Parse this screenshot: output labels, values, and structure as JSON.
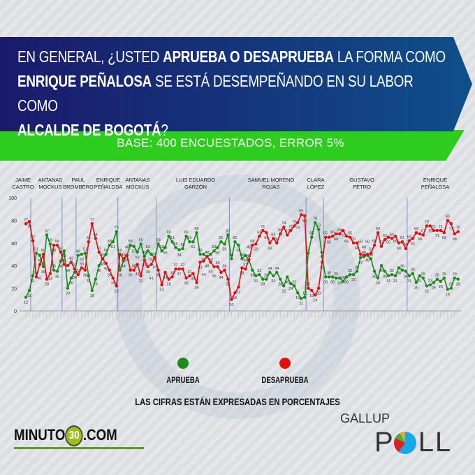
{
  "header": {
    "question_parts": [
      {
        "text": "EN GENERAL, ¿USTED ",
        "bold": false
      },
      {
        "text": "APRUEBA O DESAPRUEBA",
        "bold": true
      },
      {
        "text": " LA FORMA COMO ",
        "bold": false
      },
      {
        "text": "ENRIQUE PEÑALOSA",
        "bold": true
      },
      {
        "text": " SE ESTÁ DESEMPEÑANDO EN SU LABOR COMO ",
        "bold": false
      },
      {
        "text": "ALCALDE DE BOGOTÁ",
        "bold": true
      },
      {
        "text": "?",
        "bold": false
      }
    ],
    "base": "BASE: 400 ENCUESTADOS, ERROR 5%"
  },
  "chart_data": {
    "type": "line",
    "ylim": [
      0,
      100
    ],
    "yticks": [
      0,
      20,
      40,
      60,
      80,
      100
    ],
    "grid": false,
    "legend_placement": "bottom",
    "colors": {
      "aprueba": "#1e8a1e",
      "desaprueba": "#e01010",
      "divider": "#7a96c0"
    },
    "series_names": [
      "APRUEBA",
      "DESAPRUEBA"
    ],
    "segments": [
      {
        "label": [
          "JAIME",
          "CASTRO"
        ],
        "aprueba": [
          12,
          18
        ],
        "desaprueba": [
          77,
          79
        ]
      },
      {
        "label": [
          "ANTANAS",
          "MOCKUS"
        ],
        "aprueba": [
          31,
          51,
          49,
          39,
          67,
          59,
          36,
          35,
          44
        ],
        "desaprueba": [
          62,
          30,
          41,
          50,
          28,
          33,
          58,
          58,
          52
        ]
      },
      {
        "label": [
          "PAUL",
          "BROMBERG"
        ],
        "aprueba": [
          53,
          20,
          29,
          34
        ],
        "desaprueba": [
          41,
          40,
          43,
          37
        ]
      },
      {
        "label": [
          "ENRIQUE",
          "PEÑALOSA"
        ],
        "aprueba": [
          49,
          50,
          51,
          31,
          18,
          28,
          40,
          46,
          50,
          58,
          61,
          70
        ],
        "desaprueba": [
          32,
          38,
          36,
          61,
          77,
          64,
          52,
          46,
          42,
          36,
          29,
          22
        ]
      },
      {
        "label": [
          "ANTANAS",
          "MOCKUS"
        ],
        "aprueba": [
          36,
          44,
          49,
          58,
          57,
          52,
          59,
          48,
          53,
          50,
          47
        ],
        "desaprueba": [
          50,
          46,
          49,
          36,
          36,
          41,
          31,
          45,
          39,
          41,
          47
        ]
      },
      {
        "label": [
          "LUIS EDUARDO",
          "GARZÓN"
        ],
        "aprueba": [
          59,
          53,
          56,
          66,
          61,
          56,
          54,
          55,
          66,
          61,
          61,
          69,
          50,
          50,
          48,
          50,
          53,
          56,
          61,
          59,
          67
        ],
        "desaprueba": [
          36,
          23,
          34,
          28,
          30,
          37,
          37,
          37,
          29,
          31,
          33,
          25,
          43,
          44,
          48,
          43,
          39,
          39,
          34,
          36,
          28
        ]
      },
      {
        "label": [
          "SAMUEL MORENO",
          "ROJAS"
        ],
        "aprueba": [
          46,
          61,
          58,
          46,
          49,
          45,
          36,
          31,
          32,
          28,
          28,
          34,
          31,
          34,
          28,
          22,
          30,
          24,
          22,
          16,
          11,
          12
        ],
        "desaprueba": [
          10,
          16,
          21,
          38,
          37,
          45,
          58,
          59,
          66,
          71,
          69,
          60,
          64,
          60,
          68,
          74,
          67,
          71,
          75,
          78,
          85,
          84
        ]
      },
      {
        "label": [
          "CLARA",
          "LÓPEZ"
        ],
        "aprueba": [
          51,
          65,
          78,
          72,
          48
        ],
        "desaprueba": [
          20,
          18,
          14,
          20,
          43
        ]
      },
      {
        "label": [
          "GUSTAVO",
          "PETRO"
        ],
        "aprueba": [
          30,
          30,
          30,
          29,
          29,
          26,
          30,
          32,
          32,
          35,
          47,
          48,
          49,
          46,
          35,
          29,
          40,
          35,
          31,
          32,
          31,
          38,
          36,
          35
        ],
        "desaprueba": [
          65,
          65,
          66,
          68,
          68,
          71,
          66,
          65,
          60,
          60,
          50,
          49,
          50,
          51,
          58,
          69,
          57,
          63,
          65,
          64,
          66,
          60,
          61,
          55
        ]
      },
      {
        "label": [
          "ENRIQUE",
          "PEÑALOSA"
        ],
        "aprueba": [
          31,
          33,
          25,
          31,
          29,
          22,
          23,
          25,
          28,
          26,
          29,
          19,
          20,
          29,
          28
        ],
        "desaprueba": [
          62,
          64,
          69,
          68,
          67,
          75,
          75,
          71,
          71,
          71,
          69,
          80,
          77,
          68,
          70
        ]
      }
    ]
  },
  "legend": {
    "aprueba": "APRUEBA",
    "desaprueba": "DESAPRUEBA"
  },
  "note": "LAS CIFRAS ESTÁN EXPRESADAS EN PORCENTAJES",
  "logos": {
    "minuto30_left": "MINUTO",
    "minuto30_num": "30",
    "minuto30_right": ".COM",
    "gallup": "GALLUP",
    "poll_p": "P",
    "poll_rest": "LL"
  }
}
